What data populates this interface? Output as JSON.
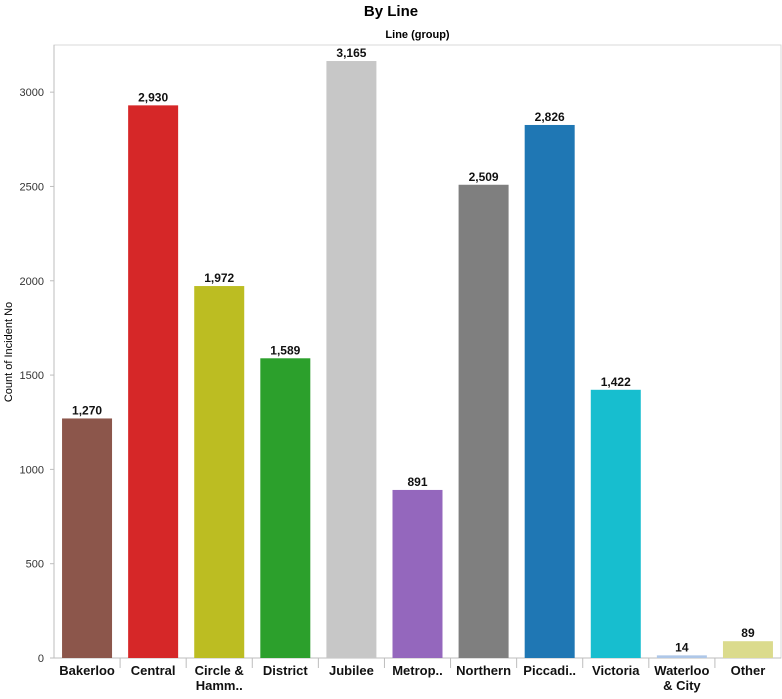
{
  "chart_data": {
    "type": "bar",
    "title": "By Line",
    "subtitle": "Line (group)",
    "ylabel": "Count of Incident No",
    "xlabel": "",
    "ylim": [
      0,
      3250
    ],
    "yticks": [
      0,
      500,
      1000,
      1500,
      2000,
      2500,
      3000
    ],
    "grid": false,
    "legend": "none",
    "categories": [
      [
        "Bakerloo"
      ],
      [
        "Central"
      ],
      [
        "Circle &",
        "Hamm.."
      ],
      [
        "District"
      ],
      [
        "Jubilee"
      ],
      [
        "Metrop.."
      ],
      [
        "Northern"
      ],
      [
        "Piccadi.."
      ],
      [
        "Victoria"
      ],
      [
        "Waterloo",
        "& City"
      ],
      [
        "Other"
      ]
    ],
    "values": [
      1270,
      2930,
      1972,
      1589,
      3165,
      891,
      2509,
      2826,
      1422,
      14,
      89
    ],
    "value_labels": [
      "1,270",
      "2,930",
      "1,972",
      "1,589",
      "3,165",
      "891",
      "2,509",
      "2,826",
      "1,422",
      "14",
      "89"
    ],
    "colors": [
      "#8c564b",
      "#d62728",
      "#bcbd22",
      "#2ca02c",
      "#c7c7c7",
      "#9467bd",
      "#7f7f7f",
      "#1f77b4",
      "#17becf",
      "#aec7e8",
      "#dbdb8d"
    ]
  }
}
